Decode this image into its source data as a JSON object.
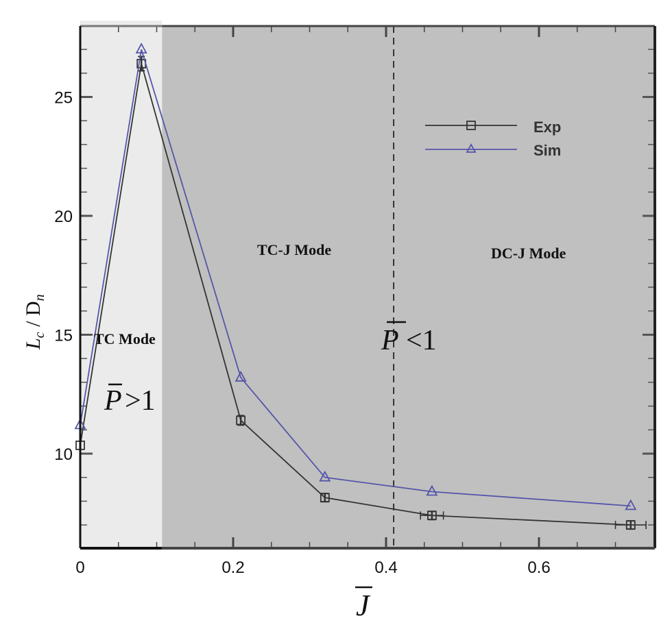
{
  "chart_data": {
    "type": "line",
    "title": "",
    "xlabel": "J̄",
    "ylabel": "L_c / D_n",
    "xlim": [
      0,
      0.75
    ],
    "ylim": [
      6,
      28
    ],
    "x_ticks": [
      0,
      0.2,
      0.4,
      0.6
    ],
    "x_tick_labels": [
      "0",
      "0.2",
      "0.4",
      "0.6"
    ],
    "y_ticks": [
      10,
      15,
      20,
      25
    ],
    "y_tick_labels": [
      "10",
      "15",
      "20",
      "25"
    ],
    "grid": false,
    "legend_position": "upper right",
    "series": [
      {
        "name": "Exp",
        "color": "#333333",
        "marker": "square",
        "x": [
          0,
          0.08,
          0.21,
          0.32,
          0.46,
          0.72
        ],
        "values": [
          10.35,
          26.4,
          11.4,
          8.15,
          7.4,
          7.0
        ],
        "x_error": [
          0,
          0,
          0,
          0,
          0.015,
          0.02
        ],
        "y_error": [
          0,
          0.3,
          0.2,
          0.05,
          0.05,
          0.05
        ]
      },
      {
        "name": "Sim",
        "color": "#5555aa",
        "marker": "triangle",
        "x": [
          0,
          0.08,
          0.21,
          0.32,
          0.46,
          0.72
        ],
        "values": [
          11.2,
          27.0,
          13.2,
          9.0,
          8.4,
          7.8
        ]
      }
    ],
    "regions": [
      {
        "name": "TC Mode",
        "x_range": [
          0,
          0.107
        ],
        "color": "#ebebeb",
        "label": "TC Mode",
        "condition": "P̄>1"
      },
      {
        "name": "TC-J Mode",
        "x_range": [
          0.107,
          0.41
        ],
        "color": "#c0c0c0",
        "label": "TC-J Mode",
        "condition": "P̄<1"
      },
      {
        "name": "DC-J Mode",
        "x_range": [
          0.41,
          0.75
        ],
        "color": "#c0c0c0",
        "label": "DC-J Mode"
      }
    ],
    "annotations": [
      {
        "type": "vline",
        "x": 0.41,
        "style": "dashed",
        "color": "#111111"
      },
      {
        "text": "TC Mode",
        "x": 0.065,
        "y": 15.0
      },
      {
        "text": "P̄>1",
        "x": 0.075,
        "y": 12.0
      },
      {
        "text": "TC-J Mode",
        "x": 0.32,
        "y": 18.3
      },
      {
        "text": "P̄<1",
        "x": 0.42,
        "y": 14.6
      },
      {
        "text": "DC-J Mode",
        "x": 0.6,
        "y": 18.2
      }
    ]
  },
  "labels": {
    "x_axis_title": "J",
    "y_axis_title_L": "L",
    "y_axis_title_c": "c",
    "y_axis_title_slash_D": " / D",
    "y_axis_title_n": "n",
    "tc_mode": "TC Mode",
    "tcj_mode": "TC-J Mode",
    "dcj_mode": "DC-J Mode",
    "p_gt": ">1",
    "p_lt": "<1",
    "p_symbol": "P",
    "legend_exp": "Exp",
    "legend_sim": "Sim"
  }
}
